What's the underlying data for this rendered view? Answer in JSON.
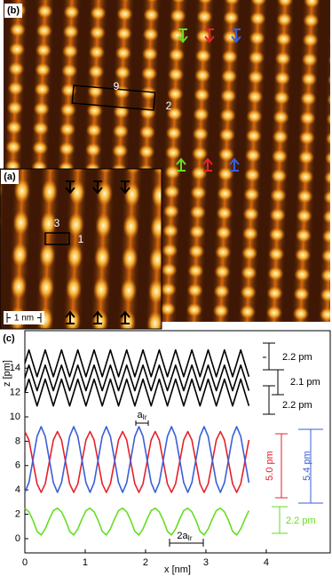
{
  "images": {
    "panel_b": {
      "label": "(b)",
      "box_labels": [
        "9",
        "2"
      ]
    },
    "panel_a": {
      "label": "(a)",
      "box_labels": [
        "3",
        "1"
      ],
      "scale_bar": "1 nm"
    }
  },
  "chart_data": {
    "type": "line",
    "panel_label": "(c)",
    "xlabel": "x [nm]",
    "ylabel": "z [pm]",
    "xlim": [
      0,
      5.06
    ],
    "ylim": [
      -1.17,
      17.08
    ],
    "xticks": [
      0,
      1,
      2,
      3,
      4
    ],
    "yticks": [
      0,
      2,
      4,
      6,
      8,
      10,
      12,
      14
    ],
    "x": [
      0,
      0.0675,
      0.135,
      0.2025,
      0.27,
      0.3375,
      0.405,
      0.4725,
      0.54,
      0.6075,
      0.675,
      0.7425,
      0.81,
      0.8775,
      0.945,
      1.0125,
      1.08,
      1.1475,
      1.215,
      1.2825,
      1.35,
      1.4175,
      1.485,
      1.5525,
      1.62,
      1.6875,
      1.755,
      1.8225,
      1.89,
      1.9575,
      2.025,
      2.0925,
      2.16,
      2.2275,
      2.295,
      2.3625,
      2.43,
      2.4975,
      2.565,
      2.6325,
      2.7,
      2.7675,
      2.835,
      2.9025,
      2.97,
      3.0375,
      3.105,
      3.1725,
      3.24,
      3.3075,
      3.375,
      3.4425,
      3.51,
      3.5775,
      3.645,
      3.7125
    ],
    "series": [
      {
        "color": "#000000",
        "values": [
          14.4,
          15.5,
          14.4,
          13.3,
          14.4,
          15.5,
          14.4,
          13.3,
          14.4,
          15.5,
          14.4,
          13.3,
          14.4,
          15.5,
          14.4,
          13.3,
          14.4,
          15.5,
          14.4,
          13.3,
          14.4,
          15.5,
          14.4,
          13.3,
          14.4,
          15.5,
          14.4,
          13.3,
          14.4,
          15.5,
          14.4,
          13.3,
          14.4,
          15.5,
          14.4,
          13.3,
          14.4,
          15.5,
          14.4,
          13.3,
          14.4,
          15.5,
          14.4,
          13.3,
          14.4,
          15.5,
          14.4,
          13.3,
          14.4,
          15.5,
          14.4,
          13.3,
          14.4,
          15.5,
          14.4,
          13.3
        ]
      },
      {
        "color": "#000000",
        "values": [
          13.2,
          14.25,
          13.2,
          12.15,
          13.2,
          14.25,
          13.2,
          12.15,
          13.2,
          14.25,
          13.2,
          12.15,
          13.2,
          14.25,
          13.2,
          12.15,
          13.2,
          14.25,
          13.2,
          12.15,
          13.2,
          14.25,
          13.2,
          12.15,
          13.2,
          14.25,
          13.2,
          12.15,
          13.2,
          14.25,
          13.2,
          12.15,
          13.2,
          14.25,
          13.2,
          12.15,
          13.2,
          14.25,
          13.2,
          12.15,
          13.2,
          14.25,
          13.2,
          12.15,
          13.2,
          14.25,
          13.2,
          12.15,
          13.2,
          14.25,
          13.2,
          12.15,
          13.2,
          14.25,
          13.2,
          12.15
        ]
      },
      {
        "color": "#000000",
        "values": [
          12,
          13.1,
          12,
          10.9,
          12,
          13.1,
          12,
          10.9,
          12,
          13.1,
          12,
          10.9,
          12,
          13.1,
          12,
          10.9,
          12,
          13.1,
          12,
          10.9,
          12,
          13.1,
          12,
          10.9,
          12,
          13.1,
          12,
          10.9,
          12,
          13.1,
          12,
          10.9,
          12,
          13.1,
          12,
          10.9,
          12,
          13.1,
          12,
          10.9,
          12,
          13.1,
          12,
          10.9,
          12,
          13.1,
          12,
          10.9,
          12,
          13.1,
          12,
          10.9,
          12,
          13.1,
          12,
          10.9
        ]
      },
      {
        "color": "#e8202a",
        "values": [
          8.8,
          8.1,
          6.3,
          4.5,
          3.8,
          4.5,
          6.3,
          8.1,
          8.8,
          8.1,
          6.3,
          4.5,
          3.8,
          4.5,
          6.3,
          8.1,
          8.8,
          8.1,
          6.3,
          4.5,
          3.8,
          4.5,
          6.3,
          8.1,
          8.8,
          8.1,
          6.3,
          4.5,
          3.8,
          4.5,
          6.3,
          8.1,
          8.8,
          8.1,
          6.3,
          4.5,
          3.8,
          4.5,
          6.3,
          8.1,
          8.8,
          8.1,
          6.3,
          4.5,
          3.8,
          4.5,
          6.3,
          8.1,
          8.8,
          8.1,
          6.3,
          4.5,
          3.8,
          4.5,
          6.3,
          8.1
        ]
      },
      {
        "color": "#3a5fd8",
        "values": [
          3.8,
          4.6,
          6.5,
          8.4,
          9.2,
          8.4,
          6.5,
          4.6,
          3.8,
          4.6,
          6.5,
          8.4,
          9.2,
          8.4,
          6.5,
          4.6,
          3.8,
          4.6,
          6.5,
          8.4,
          9.2,
          8.4,
          6.5,
          4.6,
          3.8,
          4.6,
          6.5,
          8.4,
          9.2,
          8.4,
          6.5,
          4.6,
          3.8,
          4.6,
          6.5,
          8.4,
          9.2,
          8.4,
          6.5,
          4.6,
          3.8,
          4.6,
          6.5,
          8.4,
          9.2,
          8.4,
          6.5,
          4.6,
          3.8,
          4.6,
          6.5,
          8.4,
          9.2,
          8.4,
          6.5,
          4.6
        ]
      },
      {
        "color": "#66dd22",
        "values": [
          2.5,
          2.2,
          1.5,
          0.6,
          0.3,
          0.8,
          1.6,
          2.3,
          2.5,
          2.2,
          1.5,
          0.6,
          0.3,
          0.8,
          1.6,
          2.3,
          2.5,
          2.2,
          1.5,
          0.6,
          0.3,
          0.8,
          1.6,
          2.3,
          2.5,
          2.2,
          1.5,
          0.6,
          0.3,
          0.8,
          1.6,
          2.3,
          2.5,
          2.2,
          1.5,
          0.6,
          0.3,
          0.8,
          1.6,
          2.3,
          2.5,
          2.2,
          1.5,
          0.6,
          0.3,
          0.8,
          1.6,
          2.3,
          2.5,
          2.2,
          1.5,
          0.6,
          0.3,
          0.8,
          1.6,
          2.3
        ]
      }
    ],
    "annotations": [
      {
        "text": "2.2 pm",
        "color": "#000000"
      },
      {
        "text": "2.1 pm",
        "color": "#000000"
      },
      {
        "text": "2.2 pm",
        "color": "#000000"
      },
      {
        "text": "5.0 pm",
        "color": "#e8202a"
      },
      {
        "text": "5.4 pm",
        "color": "#3a5fd8"
      },
      {
        "text": "2.2 pm",
        "color": "#66dd22"
      },
      {
        "text": "a",
        "sub": "Ir",
        "color": "#000000"
      },
      {
        "text": "2a",
        "sub": "Ir",
        "color": "#000000"
      }
    ]
  }
}
